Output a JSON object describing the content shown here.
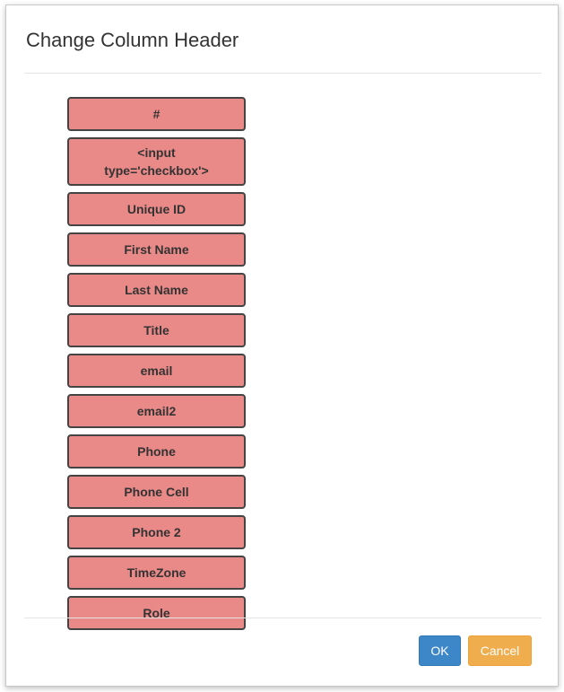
{
  "dialog": {
    "title": "Change Column Header",
    "columns": [
      "#",
      "<input type='checkbox'>",
      "Unique ID",
      "First Name",
      "Last Name",
      "Title",
      "email",
      "email2",
      "Phone",
      "Phone Cell",
      "Phone 2",
      "TimeZone",
      "Role"
    ],
    "ok_label": "OK",
    "cancel_label": "Cancel"
  },
  "colors": {
    "item_bg": "#ea8a88",
    "ok": "#3d87c8",
    "cancel": "#f0ad4e"
  }
}
